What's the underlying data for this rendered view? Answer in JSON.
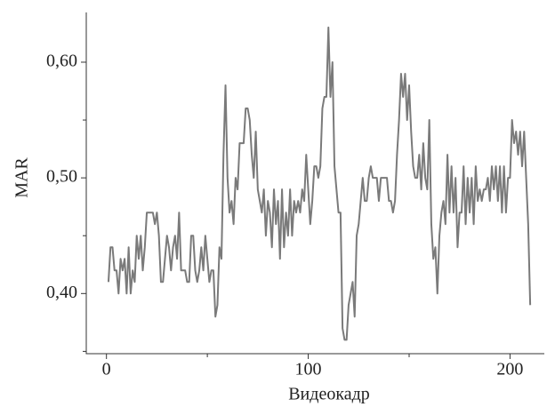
{
  "chart_data": {
    "type": "line",
    "xlabel": "Видеокадр",
    "ylabel": "MAR",
    "xlim": [
      -10,
      217
    ],
    "ylim": [
      0.348,
      0.643
    ],
    "xticks": [
      0,
      100,
      200
    ],
    "xminorticks": [
      50,
      150
    ],
    "yticks": [
      {
        "value": 0.4,
        "label": "0,40"
      },
      {
        "value": 0.5,
        "label": "0,50"
      },
      {
        "value": 0.6,
        "label": "0,60"
      }
    ],
    "yminorticks": [
      0.35,
      0.45,
      0.55
    ],
    "series": [
      {
        "color": "#7a7a7a",
        "x": [
          1,
          2,
          3,
          4,
          5,
          6,
          7,
          8,
          9,
          10,
          11,
          12,
          13,
          14,
          15,
          16,
          17,
          18,
          19,
          20,
          21,
          22,
          23,
          24,
          25,
          26,
          27,
          28,
          29,
          30,
          31,
          32,
          33,
          34,
          35,
          36,
          37,
          38,
          39,
          40,
          41,
          42,
          43,
          44,
          45,
          46,
          47,
          48,
          49,
          50,
          51,
          52,
          53,
          54,
          55,
          56,
          57,
          58,
          59,
          60,
          61,
          62,
          63,
          64,
          65,
          66,
          67,
          68,
          69,
          70,
          71,
          72,
          73,
          74,
          75,
          76,
          77,
          78,
          79,
          80,
          81,
          82,
          83,
          84,
          85,
          86,
          87,
          88,
          89,
          90,
          91,
          92,
          93,
          94,
          95,
          96,
          97,
          98,
          99,
          100,
          101,
          102,
          103,
          104,
          105,
          106,
          107,
          108,
          109,
          110,
          111,
          112,
          113,
          114,
          115,
          116,
          117,
          118,
          119,
          120,
          121,
          122,
          123,
          124,
          125,
          126,
          127,
          128,
          129,
          130,
          131,
          132,
          133,
          134,
          135,
          136,
          137,
          138,
          139,
          140,
          141,
          142,
          143,
          144,
          145,
          146,
          147,
          148,
          149,
          150,
          151,
          152,
          153,
          154,
          155,
          156,
          157,
          158,
          159,
          160,
          161,
          162,
          163,
          164,
          165,
          166,
          167,
          168,
          169,
          170,
          171,
          172,
          173,
          174,
          175,
          176,
          177,
          178,
          179,
          180,
          181,
          182,
          183,
          184,
          185,
          186,
          187,
          188,
          189,
          190,
          191,
          192,
          193,
          194,
          195,
          196,
          197,
          198,
          199,
          200,
          201,
          202,
          203,
          204,
          205,
          206,
          207,
          208,
          209,
          210
        ],
        "values": [
          0.41,
          0.44,
          0.44,
          0.42,
          0.42,
          0.4,
          0.43,
          0.42,
          0.43,
          0.4,
          0.44,
          0.4,
          0.42,
          0.41,
          0.45,
          0.43,
          0.45,
          0.42,
          0.44,
          0.47,
          0.47,
          0.47,
          0.47,
          0.46,
          0.47,
          0.45,
          0.41,
          0.41,
          0.43,
          0.45,
          0.44,
          0.42,
          0.44,
          0.45,
          0.43,
          0.47,
          0.42,
          0.42,
          0.42,
          0.41,
          0.41,
          0.45,
          0.45,
          0.42,
          0.41,
          0.42,
          0.44,
          0.42,
          0.45,
          0.43,
          0.41,
          0.42,
          0.42,
          0.38,
          0.39,
          0.44,
          0.43,
          0.52,
          0.58,
          0.5,
          0.47,
          0.48,
          0.46,
          0.5,
          0.49,
          0.53,
          0.53,
          0.53,
          0.56,
          0.56,
          0.55,
          0.52,
          0.5,
          0.54,
          0.49,
          0.48,
          0.47,
          0.49,
          0.45,
          0.48,
          0.47,
          0.44,
          0.49,
          0.46,
          0.48,
          0.43,
          0.49,
          0.44,
          0.47,
          0.45,
          0.49,
          0.45,
          0.48,
          0.47,
          0.48,
          0.47,
          0.49,
          0.48,
          0.52,
          0.49,
          0.46,
          0.48,
          0.51,
          0.51,
          0.5,
          0.51,
          0.56,
          0.57,
          0.57,
          0.63,
          0.57,
          0.6,
          0.51,
          0.49,
          0.47,
          0.47,
          0.37,
          0.36,
          0.36,
          0.39,
          0.4,
          0.41,
          0.38,
          0.45,
          0.46,
          0.48,
          0.5,
          0.48,
          0.48,
          0.5,
          0.51,
          0.5,
          0.5,
          0.5,
          0.48,
          0.5,
          0.5,
          0.5,
          0.5,
          0.48,
          0.48,
          0.47,
          0.48,
          0.52,
          0.55,
          0.59,
          0.57,
          0.59,
          0.55,
          0.58,
          0.54,
          0.51,
          0.5,
          0.5,
          0.52,
          0.49,
          0.53,
          0.5,
          0.49,
          0.55,
          0.46,
          0.43,
          0.44,
          0.4,
          0.45,
          0.47,
          0.48,
          0.46,
          0.52,
          0.47,
          0.51,
          0.47,
          0.5,
          0.44,
          0.47,
          0.47,
          0.51,
          0.46,
          0.5,
          0.47,
          0.5,
          0.46,
          0.51,
          0.48,
          0.49,
          0.48,
          0.49,
          0.49,
          0.5,
          0.48,
          0.51,
          0.49,
          0.51,
          0.48,
          0.51,
          0.47,
          0.51,
          0.47,
          0.5,
          0.5,
          0.55,
          0.53,
          0.54,
          0.52,
          0.54,
          0.51,
          0.54,
          0.5,
          0.46,
          0.39
        ]
      }
    ]
  }
}
